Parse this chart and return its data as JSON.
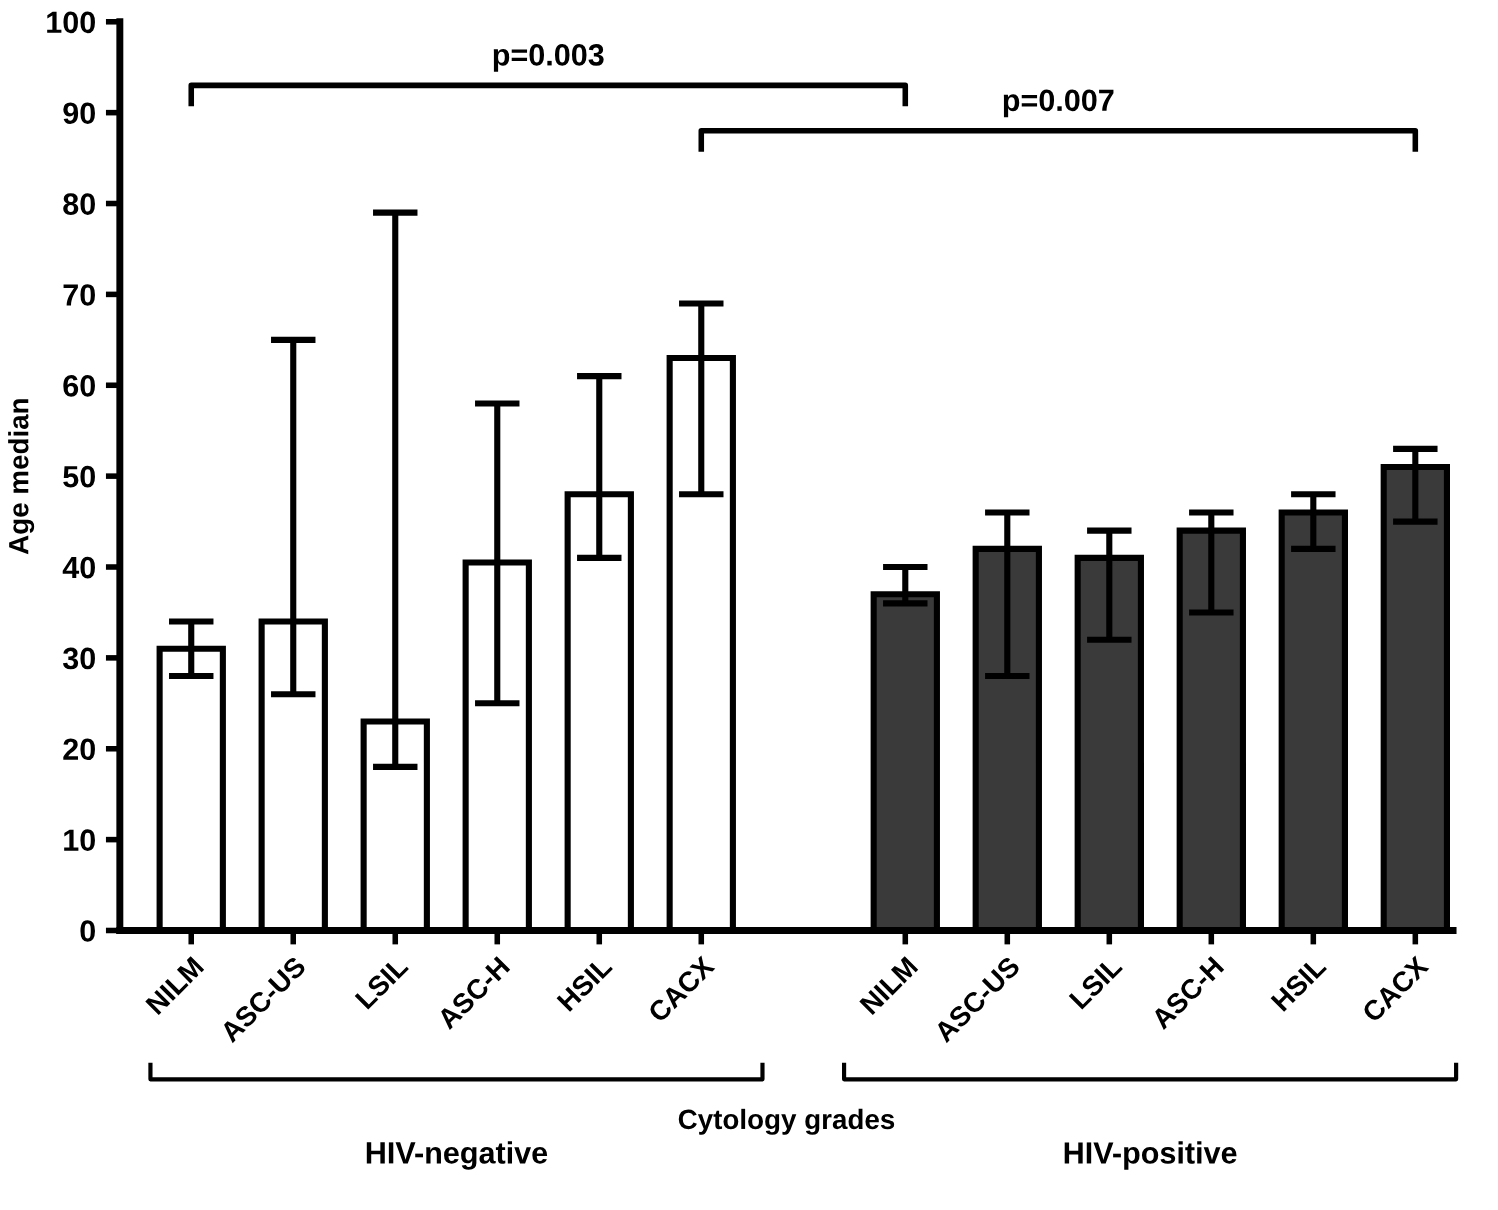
{
  "chart_data": {
    "type": "bar",
    "xlabel": "Cytology grades",
    "ylabel": "Age median",
    "categories": [
      "NILM",
      "ASC-US",
      "LSIL",
      "ASC-H",
      "HSIL",
      "CACX",
      null,
      "NILM",
      "ASC-US",
      "LSIL",
      "ASC-H",
      "HSIL",
      "CACX"
    ],
    "values": [
      31,
      34,
      23,
      40.5,
      48,
      63,
      null,
      37,
      42,
      41,
      44,
      46,
      51
    ],
    "errors": [
      [
        28,
        34
      ],
      [
        26,
        65
      ],
      [
        18,
        79
      ],
      [
        25,
        58
      ],
      [
        41,
        61
      ],
      [
        48,
        69
      ],
      null,
      [
        36,
        40
      ],
      [
        28,
        46
      ],
      [
        32,
        44
      ],
      [
        35,
        46
      ],
      [
        42,
        48
      ],
      [
        45,
        53
      ]
    ],
    "colors": [
      "#ffffff",
      "#ffffff",
      "#ffffff",
      "#ffffff",
      "#ffffff",
      "#ffffff",
      null,
      "#3a3a3a",
      "#3a3a3a",
      "#3a3a3a",
      "#3a3a3a",
      "#3a3a3a",
      "#3a3a3a"
    ],
    "ylim": [
      0,
      100
    ],
    "yticks": [
      0,
      10,
      20,
      30,
      40,
      50,
      60,
      70,
      80,
      90,
      100
    ],
    "grid": false,
    "legend": false,
    "annotations": [
      "p=0.003",
      "p=0.007",
      "HIV-negative",
      "HIV-positive"
    ]
  }
}
